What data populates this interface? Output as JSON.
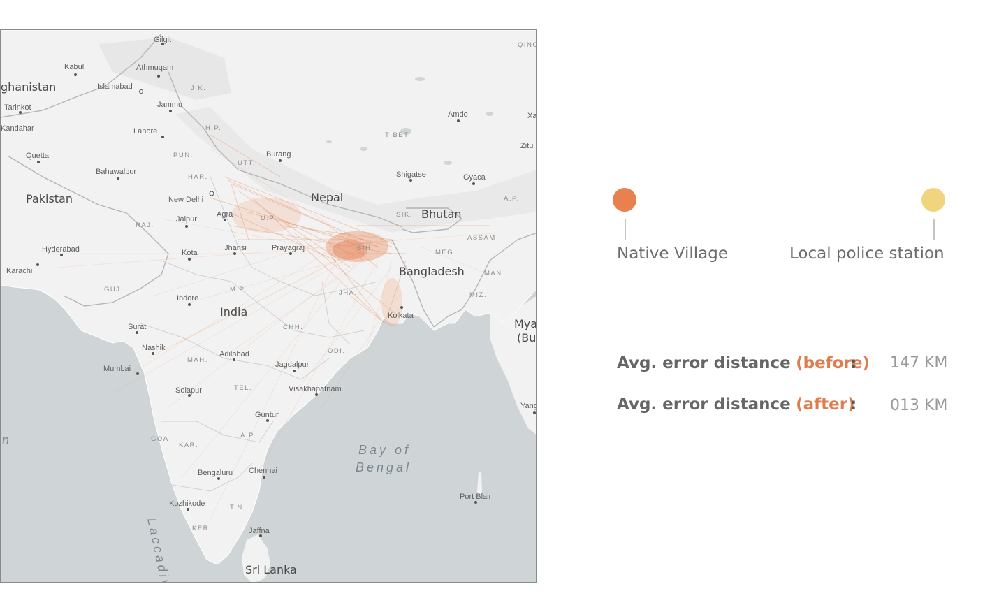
{
  "legend": {
    "start_label": "Native Village",
    "end_label": "Local police station",
    "start_color": "#e8804f",
    "end_color": "#f1d57e"
  },
  "stats": [
    {
      "label": "Avg. error distance",
      "qualifier": "(before)",
      "colon": ":",
      "value": "147 KM"
    },
    {
      "label": "Avg. error distance",
      "qualifier": "(after)",
      "colon": ":",
      "value": "013 KM"
    }
  ],
  "map": {
    "countries": [
      "ghanistan",
      "Pakistan",
      "Nepal",
      "Bhutan",
      "Bangladesh",
      "India",
      "Sri Lanka",
      "Mya",
      "(Bu"
    ],
    "sea_labels": [
      "Bay of",
      "Bengal",
      "Laccadive",
      "n"
    ],
    "regions": [
      "TIBET",
      "J.K.",
      "H.P.",
      "PUN.",
      "HAR.",
      "UTT.",
      "RAJ.",
      "U.P.",
      "BIH.",
      "SIK.",
      "ASSAM",
      "MEG.",
      "MAN.",
      "MIZ.",
      "JHA.",
      "M.P.",
      "GUJ.",
      "CHH.",
      "ODI.",
      "MAH.",
      "TEL.",
      "A.P.",
      "GOA",
      "KAR.",
      "T.N.",
      "KER.",
      "QING",
      "A.P."
    ],
    "cities": [
      "Gilgit",
      "Kabul",
      "Athmuqam",
      "Islamabad",
      "Tarinkot",
      "Kandahar",
      "Jammu",
      "Lahore",
      "Quetta",
      "Bahawalpur",
      "New Delhi",
      "Agra",
      "Jaipur",
      "Burang",
      "Shigatse",
      "Gyaca",
      "Amdo",
      "Zitu",
      "Xa",
      "Hyderabad",
      "Karachi",
      "Kota",
      "Jhansi",
      "Prayagraj",
      "Kolkata",
      "Indore",
      "Surat",
      "Nashik",
      "Mumbai",
      "Adilabad",
      "Jagdalpur",
      "Solapur",
      "Visakhapatnam",
      "Guntur",
      "Bengaluru",
      "Chennai",
      "Kozhikode",
      "Jaffna",
      "Port Blair",
      "Yang"
    ]
  }
}
